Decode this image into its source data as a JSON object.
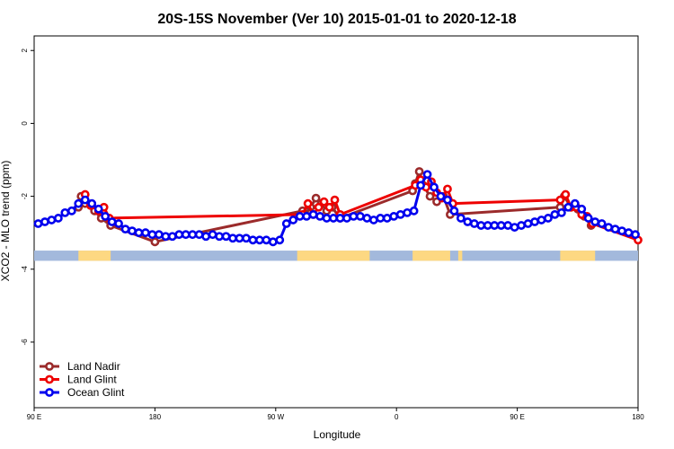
{
  "chart_data": {
    "type": "line",
    "title": "20S-15S November (Ver 10)   2015-01-01 to 2020-12-18",
    "xlabel": "Longitude",
    "ylabel": "XCO2 - MLO trend (ppm)",
    "xlim": [
      0,
      450
    ],
    "ylim": [
      -7.8,
      2.4
    ],
    "x_ticks": [
      {
        "value": 0,
        "label": "90 E"
      },
      {
        "value": 90,
        "label": "180"
      },
      {
        "value": 180,
        "label": "90 W"
      },
      {
        "value": 270,
        "label": "0"
      },
      {
        "value": 360,
        "label": "90 E"
      },
      {
        "value": 450,
        "label": "180"
      }
    ],
    "y_ticks": [
      {
        "value": 2,
        "label": "2"
      },
      {
        "value": 0,
        "label": "0"
      },
      {
        "value": -2,
        "label": "-2"
      },
      {
        "value": -4,
        "label": "-4"
      },
      {
        "value": -6,
        "label": "-6"
      }
    ],
    "grid": false,
    "legend_position": "bottom-left",
    "land_ocean_strip": {
      "y_center": -3.63,
      "y_halfwidth": 0.14,
      "ocean_color": "#a3b9dc",
      "land_color": "#fdd882",
      "land_segments": [
        [
          33,
          57
        ],
        [
          196,
          250
        ],
        [
          282,
          310
        ],
        [
          316,
          319
        ],
        [
          392,
          418
        ]
      ]
    },
    "series": [
      {
        "name": "Land Nadir",
        "color": "#9b2b2b",
        "x": [
          33,
          35,
          38,
          45,
          50,
          57,
          90,
          200,
          202,
          206,
          210,
          214,
          218,
          222,
          228,
          282,
          284,
          287,
          290,
          295,
          300,
          305,
          310,
          392,
          395,
          400,
          405,
          410,
          415
        ],
        "y": [
          -2.3,
          -2.0,
          -2.2,
          -2.4,
          -2.6,
          -2.8,
          -3.25,
          -2.4,
          -2.5,
          -2.3,
          -2.05,
          -2.2,
          -2.4,
          -2.3,
          -2.6,
          -1.85,
          -1.65,
          -1.32,
          -1.7,
          -2.0,
          -2.15,
          -2.0,
          -2.5,
          -2.3,
          -2.0,
          -2.3,
          -2.35,
          -2.55,
          -2.8
        ]
      },
      {
        "name": "Land Glint",
        "color": "#ee0000",
        "x": [
          38,
          42,
          48,
          52,
          56,
          200,
          204,
          208,
          212,
          216,
          220,
          224,
          228,
          284,
          288,
          292,
          296,
          300,
          304,
          308,
          312,
          392,
          396,
          400,
          404,
          408,
          412,
          416,
          450
        ],
        "y": [
          -1.95,
          -2.25,
          -2.4,
          -2.3,
          -2.6,
          -2.5,
          -2.2,
          -2.5,
          -2.3,
          -2.15,
          -2.3,
          -2.1,
          -2.5,
          -1.7,
          -1.55,
          -1.75,
          -1.6,
          -1.9,
          -2.05,
          -1.8,
          -2.2,
          -2.1,
          -1.95,
          -2.3,
          -2.3,
          -2.5,
          -2.55,
          -2.75,
          -3.2
        ]
      },
      {
        "name": "Ocean Glint",
        "color": "#0000ee",
        "x": [
          3,
          8,
          13,
          18,
          23,
          28,
          33,
          38,
          43,
          48,
          53,
          58,
          63,
          68,
          73,
          78,
          83,
          88,
          93,
          98,
          103,
          108,
          113,
          118,
          123,
          128,
          133,
          138,
          143,
          148,
          153,
          158,
          163,
          168,
          173,
          178,
          183,
          188,
          193,
          198,
          203,
          208,
          213,
          218,
          223,
          228,
          233,
          238,
          243,
          248,
          253,
          258,
          263,
          268,
          273,
          278,
          283,
          288,
          293,
          298,
          303,
          308,
          313,
          318,
          323,
          328,
          333,
          338,
          343,
          348,
          353,
          358,
          363,
          368,
          373,
          378,
          383,
          388,
          393,
          398,
          403,
          408,
          413,
          418,
          423,
          428,
          433,
          438,
          443,
          448
        ],
        "y": [
          -2.75,
          -2.7,
          -2.65,
          -2.6,
          -2.45,
          -2.4,
          -2.2,
          -2.1,
          -2.2,
          -2.35,
          -2.55,
          -2.7,
          -2.75,
          -2.9,
          -2.95,
          -3.0,
          -3.0,
          -3.05,
          -3.05,
          -3.1,
          -3.1,
          -3.05,
          -3.05,
          -3.05,
          -3.05,
          -3.1,
          -3.05,
          -3.1,
          -3.1,
          -3.15,
          -3.15,
          -3.15,
          -3.2,
          -3.2,
          -3.2,
          -3.25,
          -3.2,
          -2.75,
          -2.65,
          -2.55,
          -2.55,
          -2.5,
          -2.55,
          -2.6,
          -2.6,
          -2.6,
          -2.6,
          -2.55,
          -2.55,
          -2.6,
          -2.65,
          -2.6,
          -2.6,
          -2.55,
          -2.5,
          -2.45,
          -2.4,
          -1.7,
          -1.4,
          -1.75,
          -2.0,
          -2.1,
          -2.4,
          -2.6,
          -2.7,
          -2.75,
          -2.8,
          -2.8,
          -2.8,
          -2.8,
          -2.8,
          -2.85,
          -2.8,
          -2.75,
          -2.7,
          -2.65,
          -2.6,
          -2.5,
          -2.45,
          -2.3,
          -2.2,
          -2.35,
          -2.6,
          -2.7,
          -2.75,
          -2.85,
          -2.9,
          -2.95,
          -3.0,
          -3.05
        ]
      }
    ]
  }
}
